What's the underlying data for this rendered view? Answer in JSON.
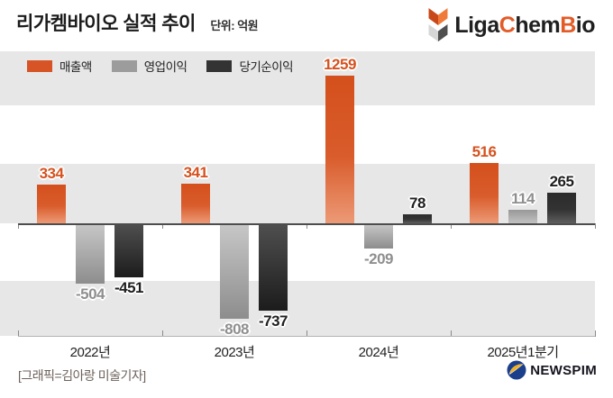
{
  "title": "리가켐바이오 실적 추이",
  "unit_label": "단위: 억원",
  "brand": {
    "parts": [
      {
        "text": "Liga",
        "color": "#1f1f1f"
      },
      {
        "text": "C",
        "color": "#e35b27"
      },
      {
        "text": "hem",
        "color": "#1f1f1f"
      },
      {
        "text": "B",
        "color": "#e35b27"
      },
      {
        "text": "io",
        "color": "#1f1f1f"
      }
    ]
  },
  "legend": [
    {
      "label": "매출액",
      "color": "#d65426"
    },
    {
      "label": "영업이익",
      "color": "#9c9c9c"
    },
    {
      "label": "당기순이익",
      "color": "#333333"
    }
  ],
  "chart_data": {
    "type": "bar",
    "title": "리가켐바이오 실적 추이",
    "unit": "억원",
    "categories": [
      "2022년",
      "2023년",
      "2024년",
      "2025년1분기"
    ],
    "series": [
      {
        "name": "매출액",
        "values": [
          334,
          341,
          1259,
          516
        ],
        "color": "#d65426",
        "label_color": "#d5521e"
      },
      {
        "name": "영업이익",
        "values": [
          -504,
          -808,
          -209,
          114
        ],
        "color": "#9c9c9c",
        "label_color": "#8f8f8f"
      },
      {
        "name": "당기순이익",
        "values": [
          -451,
          -737,
          78,
          265
        ],
        "color": "#333333",
        "label_color": "#1f1f1f"
      }
    ],
    "ylim": [
      -1000,
      1500
    ],
    "grid": "horizontal-500-unit-bands",
    "legend_position": "top-left"
  },
  "footer": {
    "credit": "[그래픽=김아랑 미술기자]",
    "news_brand": "NEWSPIM"
  }
}
